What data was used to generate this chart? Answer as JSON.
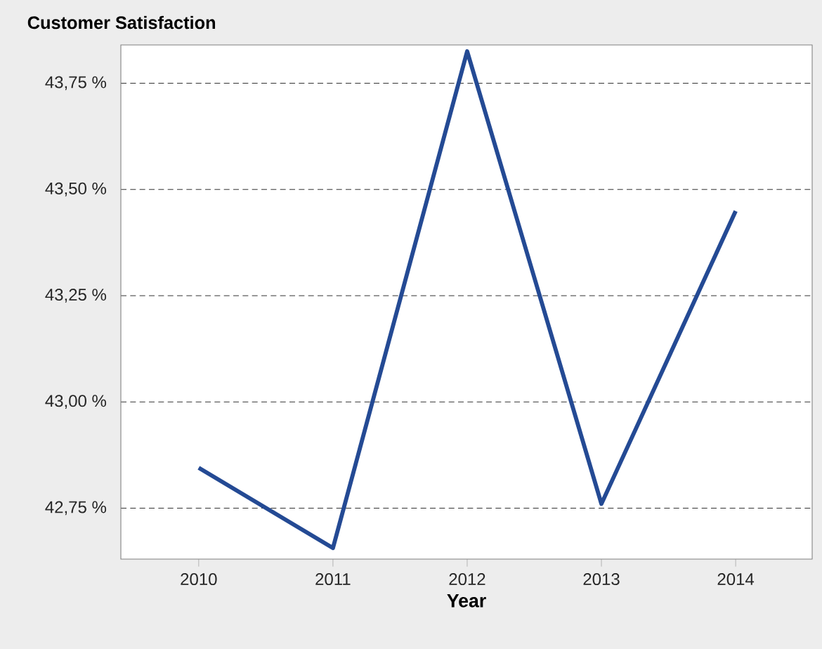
{
  "chart_data": {
    "type": "line",
    "title": "Customer Satisfaction",
    "xlabel": "Year",
    "categories": [
      "2010",
      "2011",
      "2012",
      "2013",
      "2014"
    ],
    "series": [
      {
        "color": "#244a94",
        "values": [
          42.845,
          42.656,
          43.825,
          42.76,
          43.449
        ]
      }
    ],
    "ylim": [
      42.63,
      43.84
    ],
    "yticks": [
      {
        "value": 42.75,
        "label": "42,75 %"
      },
      {
        "value": 43.0,
        "label": "43,00 %"
      },
      {
        "value": 43.25,
        "label": "43,25 %"
      },
      {
        "value": 43.5,
        "label": "43,50 %"
      },
      {
        "value": 43.75,
        "label": "43,75 %"
      }
    ],
    "grid": "y"
  }
}
